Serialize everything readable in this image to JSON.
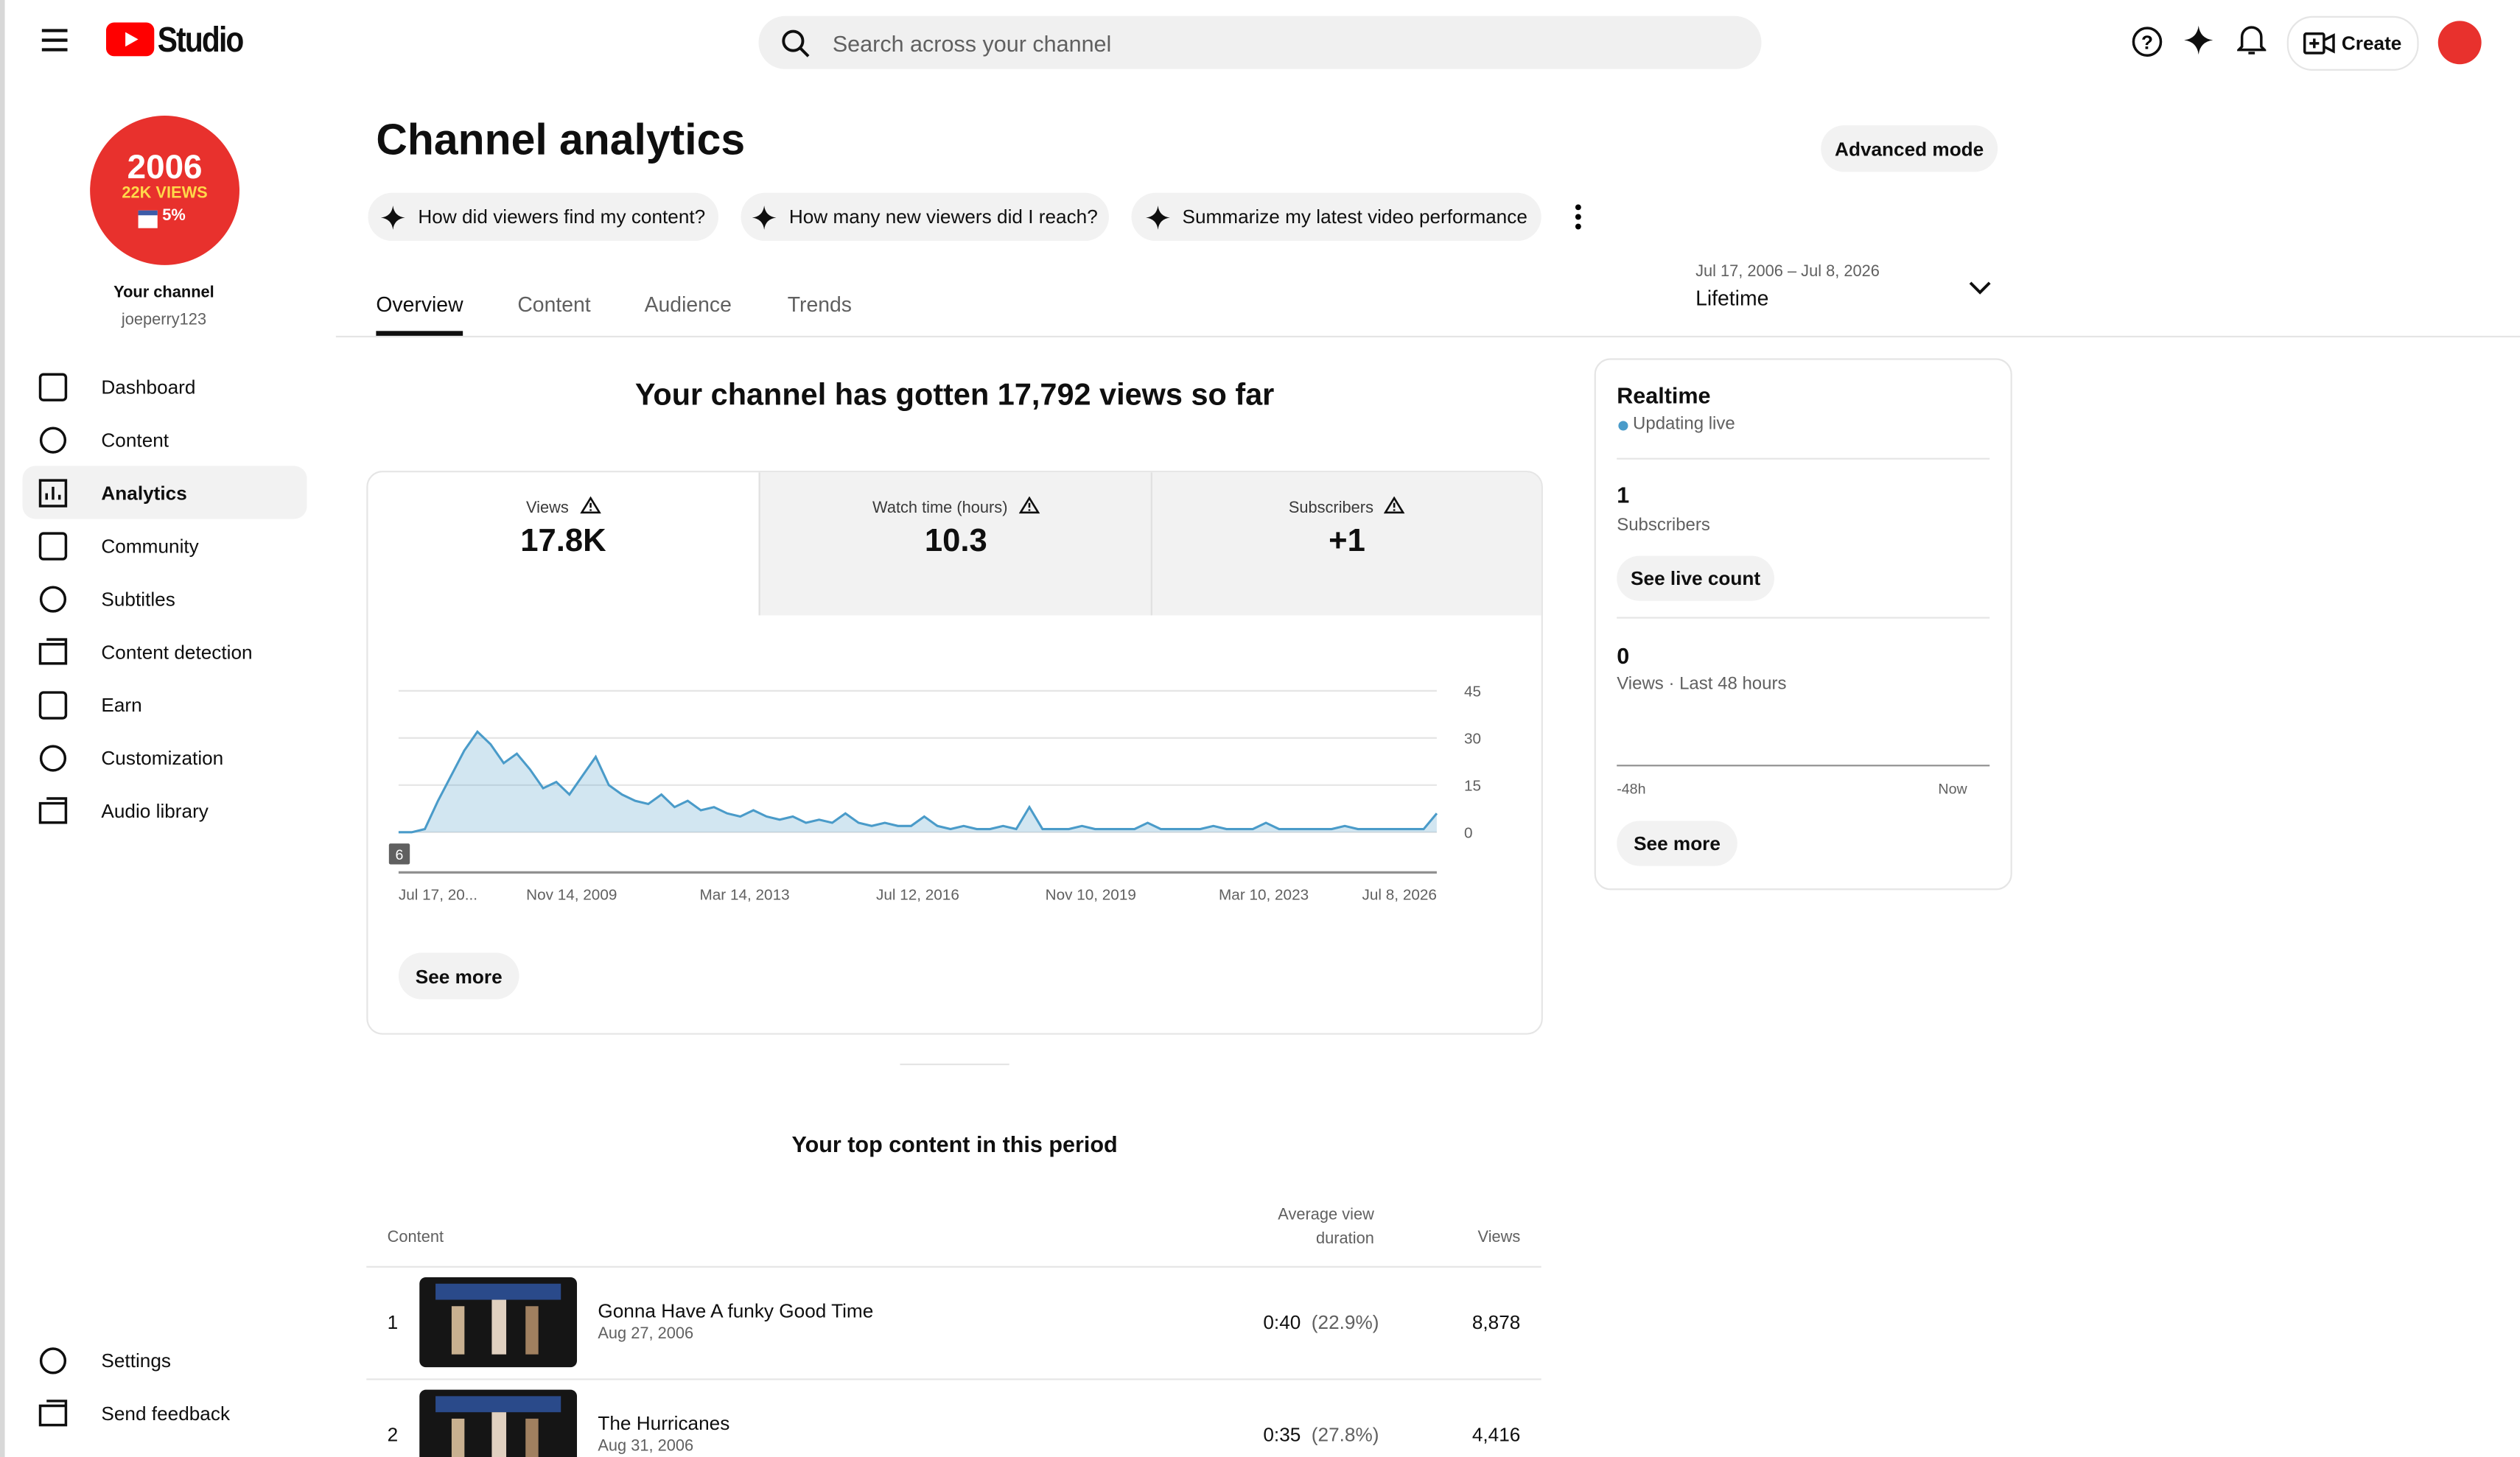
{
  "header": {
    "logo": "Studio",
    "search_placeholder": "Search across your channel",
    "create": "Create"
  },
  "sidebar": {
    "avatar": {
      "year": "2006",
      "views": "22K VIEWS",
      "pct": "5%"
    },
    "channel_label": "Your channel",
    "handle": "joeperry123",
    "nav": [
      "Dashboard",
      "Content",
      "Analytics",
      "Community",
      "Subtitles",
      "Content detection",
      "Earn",
      "Customization",
      "Audio library"
    ],
    "bottom": [
      "Settings",
      "Send feedback"
    ]
  },
  "page": {
    "title": "Channel analytics",
    "advanced": "Advanced mode",
    "prompts": [
      "How did viewers find my content?",
      "How many new viewers did I reach?",
      "Summarize my latest video performance"
    ],
    "tabs": [
      "Overview",
      "Content",
      "Audience",
      "Trends"
    ],
    "date_range": "Jul 17, 2006 – Jul 8, 2026",
    "period": "Lifetime"
  },
  "summary": "Your channel has gotten 17,792 views so far",
  "metrics": [
    {
      "label": "Views",
      "value": "17.8K"
    },
    {
      "label": "Watch time (hours)",
      "value": "10.3"
    },
    {
      "label": "Subscribers",
      "value": "+1"
    }
  ],
  "chart": {
    "type": "area",
    "color": "#4a9bc9",
    "xticks": [
      "Jul 17, 20...",
      "Nov 14, 2009",
      "Mar 14, 2013",
      "Jul 12, 2016",
      "Nov 10, 2019",
      "Mar 10, 2023",
      "Jul 8, 2026"
    ],
    "values": [
      0,
      0,
      1,
      10,
      18,
      26,
      32,
      28,
      22,
      25,
      20,
      14,
      16,
      12,
      18,
      24,
      15,
      12,
      10,
      9,
      12,
      8,
      10,
      7,
      8,
      6,
      5,
      7,
      5,
      4,
      5,
      3,
      4,
      3,
      6,
      3,
      2,
      3,
      2,
      2,
      5,
      2,
      1,
      2,
      1,
      1,
      2,
      1,
      8,
      1,
      1,
      1,
      2,
      1,
      1,
      1,
      1,
      3,
      1,
      1,
      1,
      1,
      2,
      1,
      1,
      1,
      3,
      1,
      1,
      1,
      1,
      1,
      2,
      1,
      1,
      1,
      1,
      1,
      1,
      6
    ],
    "ylim": [
      0,
      45
    ],
    "yticks": [
      0,
      15,
      30,
      45
    ],
    "grid": true,
    "range_marker": "6"
  },
  "see_more": "See more",
  "realtime": {
    "title": "Realtime",
    "status": "Updating live",
    "subs_value": "1",
    "subs_label": "Subscribers",
    "live_count": "See live count",
    "views_value": "0",
    "views_label": "Views · Last 48 hours",
    "start": "-48h",
    "end": "Now",
    "see_more": "See more"
  },
  "top_content": {
    "title": "Your top content in this period",
    "columns": [
      "Content",
      "Average view duration",
      "Views"
    ],
    "rows": [
      {
        "rank": "1",
        "title": "Gonna Have A funky Good Time",
        "date": "Aug 27, 2006",
        "duration": "0:40",
        "pct": "(22.9%)",
        "views": "8,878"
      },
      {
        "rank": "2",
        "title": "The Hurricanes",
        "date": "Aug 31, 2006",
        "duration": "0:35",
        "pct": "(27.8%)",
        "views": "4,416"
      }
    ]
  }
}
